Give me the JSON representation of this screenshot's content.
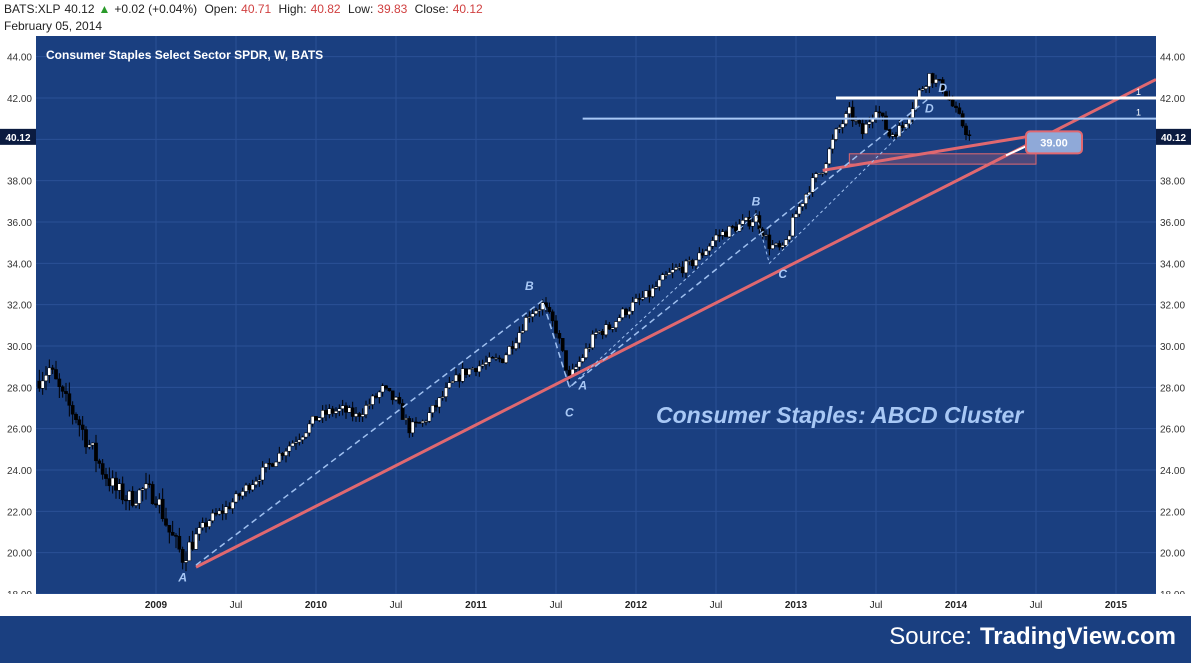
{
  "header": {
    "symbol": "BATS:XLP",
    "last": "40.12",
    "change": "+0.02 (+0.04%)",
    "open_label": "Open:",
    "open": "40.71",
    "high_label": "High:",
    "high": "40.82",
    "low_label": "Low:",
    "low": "39.83",
    "close_label": "Close:",
    "close": "40.12",
    "date": "February 05, 2014",
    "up_arrow": "▲"
  },
  "colors": {
    "background": "#1a3f80",
    "axis_bg": "#ffffff",
    "trendline": "#e06870",
    "pattern": "#9fc0f0",
    "annotation": "#a8c8f5",
    "price_flag": "#0b1b40"
  },
  "chart_data": {
    "type": "candlestick",
    "title": "Consumer Staples Select Sector SPDR, W, BATS",
    "subtitle": "Consumer Staples: ABCD Cluster",
    "source_label": "Source:",
    "source_name": "TradingView.com",
    "ylim": [
      18,
      45
    ],
    "yticks": [
      "18.00",
      "20.00",
      "22.00",
      "24.00",
      "26.00",
      "28.00",
      "30.00",
      "32.00",
      "34.00",
      "36.00",
      "38.00",
      "40.00",
      "42.00",
      "44.00"
    ],
    "xlim": [
      "2008-04",
      "2015-04"
    ],
    "xticks": [
      {
        "label": "2009",
        "date": "2009-01"
      },
      {
        "label": "Jul",
        "date": "2009-07"
      },
      {
        "label": "2010",
        "date": "2010-01"
      },
      {
        "label": "Jul",
        "date": "2010-07"
      },
      {
        "label": "2011",
        "date": "2011-01"
      },
      {
        "label": "Jul",
        "date": "2011-07"
      },
      {
        "label": "2012",
        "date": "2012-01"
      },
      {
        "label": "Jul",
        "date": "2012-07"
      },
      {
        "label": "2013",
        "date": "2013-01"
      },
      {
        "label": "Jul",
        "date": "2013-07"
      },
      {
        "label": "2014",
        "date": "2014-01"
      },
      {
        "label": "Jul",
        "date": "2014-07"
      },
      {
        "label": "2015",
        "date": "2015-01"
      }
    ],
    "last_price": "40.12",
    "price_path": [
      [
        "2008-04",
        28.3
      ],
      [
        "2008-05",
        28.9
      ],
      [
        "2008-06",
        27.5
      ],
      [
        "2008-07",
        26.6
      ],
      [
        "2008-08",
        25.2
      ],
      [
        "2008-09",
        24.0
      ],
      [
        "2008-10",
        23.0
      ],
      [
        "2008-11",
        22.6
      ],
      [
        "2008-12",
        23.0
      ],
      [
        "2009-01",
        22.8
      ],
      [
        "2009-02",
        21.0
      ],
      [
        "2009-03",
        19.8
      ],
      [
        "2009-04",
        20.8
      ],
      [
        "2009-05",
        21.6
      ],
      [
        "2009-06",
        22.0
      ],
      [
        "2009-07",
        22.6
      ],
      [
        "2009-08",
        23.3
      ],
      [
        "2009-09",
        23.9
      ],
      [
        "2009-10",
        24.6
      ],
      [
        "2009-11",
        25.2
      ],
      [
        "2009-12",
        25.8
      ],
      [
        "2010-01",
        26.5
      ],
      [
        "2010-02",
        26.8
      ],
      [
        "2010-03",
        26.9
      ],
      [
        "2010-04",
        26.6
      ],
      [
        "2010-05",
        27.2
      ],
      [
        "2010-06",
        27.9
      ],
      [
        "2010-07",
        27.3
      ],
      [
        "2010-08",
        26.0
      ],
      [
        "2010-09",
        26.3
      ],
      [
        "2010-10",
        27.1
      ],
      [
        "2010-11",
        28.0
      ],
      [
        "2010-12",
        28.7
      ],
      [
        "2011-01",
        29.0
      ],
      [
        "2011-02",
        29.2
      ],
      [
        "2011-03",
        29.4
      ],
      [
        "2011-04",
        30.4
      ],
      [
        "2011-05",
        31.6
      ],
      [
        "2011-06",
        32.0
      ],
      [
        "2011-07",
        30.8
      ],
      [
        "2011-08",
        28.4
      ],
      [
        "2011-09",
        29.5
      ],
      [
        "2011-10",
        30.6
      ],
      [
        "2011-11",
        30.9
      ],
      [
        "2011-12",
        31.6
      ],
      [
        "2012-01",
        32.1
      ],
      [
        "2012-02",
        32.5
      ],
      [
        "2012-03",
        33.2
      ],
      [
        "2012-04",
        33.7
      ],
      [
        "2012-05",
        33.9
      ],
      [
        "2012-06",
        34.5
      ],
      [
        "2012-07",
        35.3
      ],
      [
        "2012-08",
        35.6
      ],
      [
        "2012-09",
        35.9
      ],
      [
        "2012-10",
        36.2
      ],
      [
        "2012-11",
        34.9
      ],
      [
        "2012-12",
        34.6
      ],
      [
        "2013-01",
        36.4
      ],
      [
        "2013-02",
        37.7
      ],
      [
        "2013-03",
        38.6
      ],
      [
        "2013-04",
        40.3
      ],
      [
        "2013-05",
        41.3
      ],
      [
        "2013-06",
        40.3
      ],
      [
        "2013-07",
        41.6
      ],
      [
        "2013-08",
        40.2
      ],
      [
        "2013-09",
        40.6
      ],
      [
        "2013-10",
        42.0
      ],
      [
        "2013-11",
        43.1
      ],
      [
        "2013-12",
        42.5
      ],
      [
        "2014-01",
        41.3
      ],
      [
        "2014-02",
        40.12
      ]
    ],
    "volatility": 0.55,
    "trendline": {
      "from": [
        "2009-04",
        19.3
      ],
      "to": [
        "2015-04",
        42.9
      ]
    },
    "upper_trendline": {
      "from": [
        "2013-03",
        38.5
      ],
      "to": [
        "2014-07",
        40.2
      ]
    },
    "horizontal_lines": [
      {
        "y": 42.0,
        "from": "2013-04",
        "to": "2015-04",
        "label": "1",
        "color": "#ffffff"
      },
      {
        "y": 41.0,
        "from": "2011-09",
        "to": "2015-04",
        "label": "1",
        "color": "#a8c8f5"
      }
    ],
    "price_box": {
      "from": "2013-05",
      "to": "2014-07",
      "y_low": 38.8,
      "y_high": 39.3
    },
    "target_callout": {
      "label": "39.00",
      "date": "2014-07",
      "y": 39.9
    },
    "abcd_large": [
      {
        "label": "A",
        "date": "2009-04",
        "y": 19.4
      },
      {
        "label": "B",
        "date": "2011-06",
        "y": 32.2
      },
      {
        "label": "C",
        "date": "2011-08",
        "y": 28.0
      },
      {
        "label": "D",
        "date": "2013-11",
        "y": 42.0
      }
    ],
    "abcd_small": [
      {
        "label": "A",
        "date": "2011-08",
        "y": 28.0
      },
      {
        "label": "B",
        "date": "2012-10",
        "y": 36.4
      },
      {
        "label": "C",
        "date": "2012-11",
        "y": 34.0
      },
      {
        "label": "D",
        "date": "2013-10",
        "y": 41.0
      }
    ],
    "pattern_labels": [
      {
        "label": "A",
        "date": "2009-03",
        "y": 18.6
      },
      {
        "label": "B",
        "date": "2011-05",
        "y": 32.7
      },
      {
        "label": "C",
        "date": "2011-08",
        "y": 26.6
      },
      {
        "label": "A",
        "date": "2011-09",
        "y": 27.9
      },
      {
        "label": "B",
        "date": "2012-10",
        "y": 36.8
      },
      {
        "label": "C",
        "date": "2012-12",
        "y": 33.3
      },
      {
        "label": "D",
        "date": "2013-12",
        "y": 42.3
      },
      {
        "label": "D",
        "date": "2013-11",
        "y": 41.3
      }
    ]
  }
}
